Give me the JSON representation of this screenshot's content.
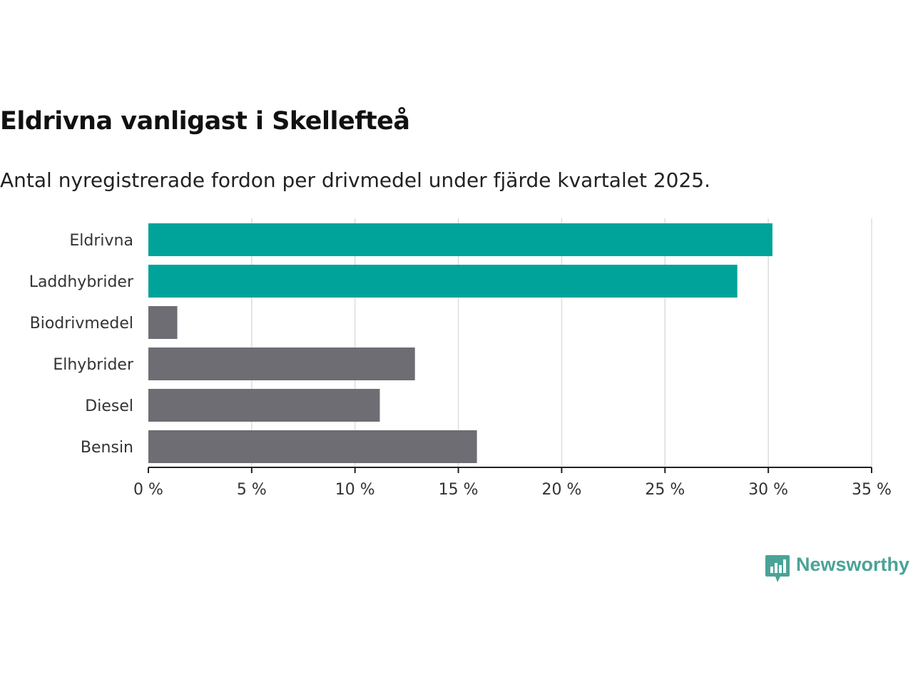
{
  "title": "Eldrivna vanligast i Skellefteå",
  "subtitle": "Antal nyregistrerade fordon per drivmedel under fjärde kvartalet 2025.",
  "brand": {
    "name": "Newsworthy",
    "icon": "bar-chart-speech-bubble-icon",
    "color": "#4aa397"
  },
  "colors": {
    "highlight": "#00a39a",
    "other": "#6e6d73"
  },
  "chart_data": {
    "type": "bar",
    "orientation": "horizontal",
    "categories": [
      "Eldrivna",
      "Laddhybrider",
      "Biodrivmedel",
      "Elhybrider",
      "Diesel",
      "Bensin"
    ],
    "values": [
      30.2,
      28.5,
      1.4,
      12.9,
      11.2,
      15.9
    ],
    "highlighted": [
      true,
      true,
      false,
      false,
      false,
      false
    ],
    "xlim": [
      0,
      35
    ],
    "xticks": [
      0,
      5,
      10,
      15,
      20,
      25,
      30,
      35
    ],
    "xtick_labels": [
      "0 %",
      "5 %",
      "10 %",
      "15 %",
      "20 %",
      "25 %",
      "30 %",
      "35 %"
    ],
    "grid": true
  }
}
